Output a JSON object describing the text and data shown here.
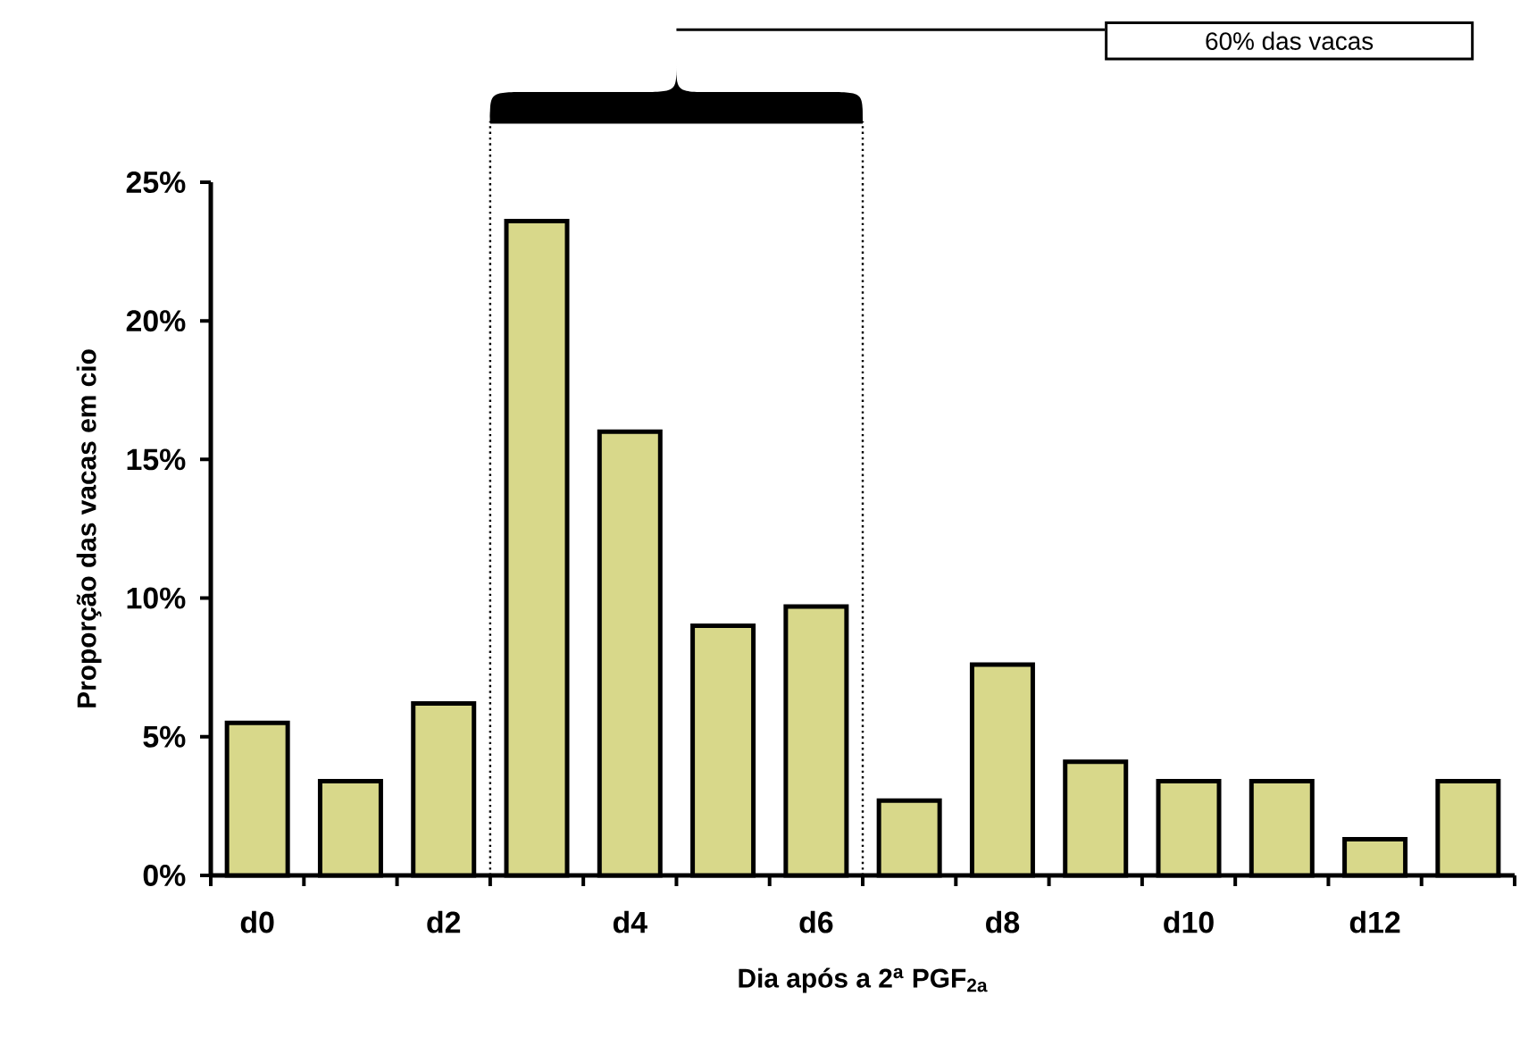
{
  "chart_data": {
    "type": "bar",
    "xlabel": "Dia após a 2$^{a}$ PGF$_{2a}$",
    "ylabel": "Proporção das vacas em cio",
    "categories": [
      "d0",
      null,
      "d2",
      null,
      "d4",
      null,
      "d6",
      null,
      "d8",
      null,
      "d10",
      null,
      "d12",
      null
    ],
    "values": [
      5.5,
      3.4,
      6.2,
      23.6,
      16.0,
      9.0,
      9.7,
      2.7,
      7.6,
      4.1,
      3.4,
      3.4,
      1.3,
      3.4
    ],
    "color": "#d8d88a",
    "ylim": [
      0,
      25
    ],
    "yticks": [
      {
        "value": 0,
        "label": "0%"
      },
      {
        "value": 5,
        "label": "5%"
      },
      {
        "value": 10,
        "label": "10%"
      },
      {
        "value": 15,
        "label": "15%"
      },
      {
        "value": 20,
        "label": "20%"
      },
      {
        "value": 25,
        "label": "25%"
      }
    ],
    "annotations": [
      "60% das vacas"
    ],
    "grid": false
  }
}
